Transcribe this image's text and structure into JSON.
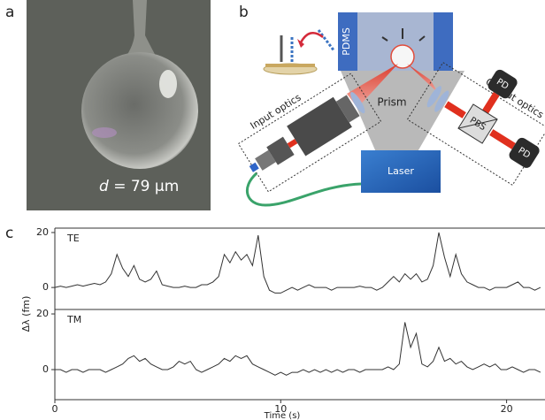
{
  "figure": {
    "panel_labels": [
      "a",
      "b",
      "c"
    ],
    "photo": {
      "caption_symbol": "d",
      "caption_rest": "= 79 μm"
    },
    "diagram": {
      "pdms": "PDMS",
      "prism": "Prism",
      "laser": "Laser",
      "input_optics": "Input optics",
      "output_optics": "Output optics",
      "detector_1": "PD",
      "detector_2": "PD",
      "splitter": "PBS"
    }
  },
  "chart_data": [
    {
      "type": "line",
      "y_label": "Δλ (fm)",
      "xlim": [
        0,
        21.7
      ],
      "ylim": [
        -8,
        21.6
      ],
      "yticks": [
        0,
        20
      ],
      "x": [
        0,
        0.25,
        0.5,
        0.75,
        1,
        1.25,
        1.5,
        1.75,
        2,
        2.25,
        2.5,
        2.75,
        3,
        3.25,
        3.5,
        3.75,
        4,
        4.25,
        4.5,
        4.75,
        5,
        5.25,
        5.5,
        5.75,
        6,
        6.25,
        6.5,
        6.75,
        7,
        7.25,
        7.5,
        7.75,
        8,
        8.25,
        8.5,
        8.75,
        9,
        9.25,
        9.5,
        9.75,
        10,
        10.25,
        10.5,
        10.75,
        11,
        11.25,
        11.5,
        11.75,
        12,
        12.25,
        12.5,
        12.75,
        13,
        13.25,
        13.5,
        13.75,
        14,
        14.25,
        14.5,
        14.75,
        15,
        15.25,
        15.5,
        15.75,
        16,
        16.25,
        16.5,
        16.75,
        17,
        17.25,
        17.5,
        17.75,
        18,
        18.25,
        18.5,
        18.75,
        19,
        19.25,
        19.5,
        19.75,
        20,
        20.25,
        20.5,
        20.75,
        21,
        21.25,
        21.5
      ],
      "series": [
        {
          "name": "TE",
          "color": "#333333",
          "values": [
            0,
            0.5,
            0,
            0.5,
            1,
            0.5,
            1,
            1.5,
            1,
            2,
            5,
            12,
            7,
            4,
            8,
            3,
            2,
            3,
            6,
            1,
            0.5,
            0,
            0,
            0.5,
            0,
            0,
            1,
            1,
            2,
            4,
            12,
            9,
            13,
            10,
            12,
            8,
            19,
            4,
            -1,
            -2,
            -2,
            -1,
            0,
            -1,
            0,
            1,
            0,
            0,
            0,
            -1,
            0,
            0,
            0,
            0,
            0.5,
            0,
            0,
            -1,
            0,
            2,
            4,
            2,
            5,
            3,
            5,
            2,
            3,
            8,
            20,
            11,
            4,
            12,
            5,
            2,
            1,
            0,
            0,
            -1,
            0,
            0,
            0,
            1,
            2,
            0,
            0,
            -1,
            0
          ]
        }
      ]
    },
    {
      "type": "line",
      "x_label": "Time (s)",
      "xlim": [
        0,
        21.7
      ],
      "xticks": [
        0,
        10,
        20
      ],
      "ylim": [
        -10.8,
        21.6
      ],
      "yticks": [
        0,
        20
      ],
      "x": [
        0,
        0.25,
        0.5,
        0.75,
        1,
        1.25,
        1.5,
        1.75,
        2,
        2.25,
        2.5,
        2.75,
        3,
        3.25,
        3.5,
        3.75,
        4,
        4.25,
        4.5,
        4.75,
        5,
        5.25,
        5.5,
        5.75,
        6,
        6.25,
        6.5,
        6.75,
        7,
        7.25,
        7.5,
        7.75,
        8,
        8.25,
        8.5,
        8.75,
        9,
        9.25,
        9.5,
        9.75,
        10,
        10.25,
        10.5,
        10.75,
        11,
        11.25,
        11.5,
        11.75,
        12,
        12.25,
        12.5,
        12.75,
        13,
        13.25,
        13.5,
        13.75,
        14,
        14.25,
        14.5,
        14.75,
        15,
        15.25,
        15.5,
        15.75,
        16,
        16.25,
        16.5,
        16.75,
        17,
        17.25,
        17.5,
        17.75,
        18,
        18.25,
        18.5,
        18.75,
        19,
        19.25,
        19.5,
        19.75,
        20,
        20.25,
        20.5,
        20.75,
        21,
        21.25,
        21.5
      ],
      "series": [
        {
          "name": "TM",
          "color": "#333333",
          "values": [
            0,
            0,
            -1,
            0,
            0,
            -1,
            0,
            0,
            0,
            -1,
            0,
            1,
            2,
            4,
            5,
            3,
            4,
            2,
            1,
            0,
            0,
            1,
            3,
            2,
            3,
            0,
            -1,
            0,
            1,
            2,
            4,
            3,
            5,
            4,
            5,
            2,
            1,
            0,
            -1,
            -2,
            -1,
            -2,
            -1,
            -1,
            0,
            -1,
            0,
            -1,
            0,
            -1,
            0,
            -1,
            0,
            0,
            -1,
            0,
            0,
            0,
            0,
            1,
            0,
            2,
            17,
            8,
            13,
            2,
            1,
            3,
            8,
            3,
            4,
            2,
            3,
            1,
            0,
            1,
            2,
            1,
            2,
            0,
            0,
            1,
            0,
            -1,
            0,
            0,
            -1
          ]
        }
      ]
    }
  ]
}
